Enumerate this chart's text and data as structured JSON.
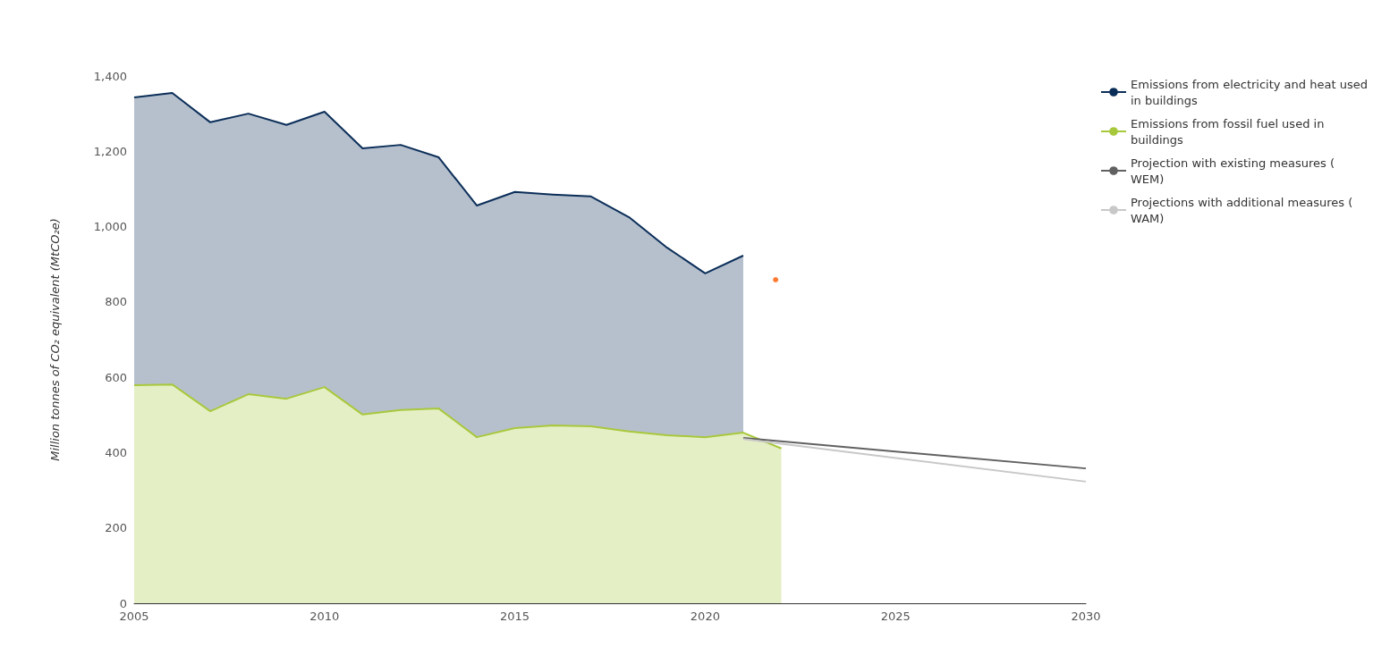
{
  "chart_data": {
    "type": "area",
    "ylabel": "Million tonnes of CO₂ equivalent (MtCO₂e)",
    "x": [
      2005,
      2006,
      2007,
      2008,
      2009,
      2010,
      2011,
      2012,
      2013,
      2014,
      2015,
      2016,
      2017,
      2018,
      2019,
      2020,
      2021,
      2022
    ],
    "stacked": true,
    "series": [
      {
        "name": "Emissions from fossil fuel used in buildings",
        "color": "#a8c83c",
        "values": [
          579,
          581,
          510,
          555,
          543,
          574,
          501,
          513,
          517,
          441,
          465,
          472,
          470,
          456,
          446,
          441,
          453,
          411
        ]
      },
      {
        "name": "Emissions from electricity and heat used in buildings",
        "color": "#0b2e59",
        "values": [
          764,
          774,
          767,
          745,
          727,
          731,
          707,
          704,
          667,
          615,
          627,
          613,
          610,
          569,
          498,
          435,
          470,
          null
        ]
      },
      {
        "name": "Projection with existing measures ( WEM)",
        "type": "line",
        "color": "#616161",
        "x": [
          2021,
          2030
        ],
        "values": [
          439,
          358
        ]
      },
      {
        "name": "Projections with additional measures ( WAM)",
        "type": "line",
        "color": "#c8c8c8",
        "x": [
          2021,
          2030
        ],
        "values": [
          436,
          323
        ]
      },
      {
        "type": "scatter",
        "color": "#ff5a00",
        "x": [
          2021.85
        ],
        "values": [
          859
        ]
      }
    ],
    "xlim": [
      2005,
      2030
    ],
    "xticks": [
      2005,
      2010,
      2015,
      2020,
      2025,
      2030
    ],
    "ylim": [
      0,
      1400
    ],
    "yticks": [
      0,
      200,
      400,
      600,
      800,
      {
        "value": 1000,
        "label": "1,000"
      },
      {
        "value": 1200,
        "label": "1,200"
      },
      {
        "value": 1400,
        "label": "1,400"
      }
    ],
    "grid": false,
    "legend": "top right",
    "marker": "none"
  }
}
